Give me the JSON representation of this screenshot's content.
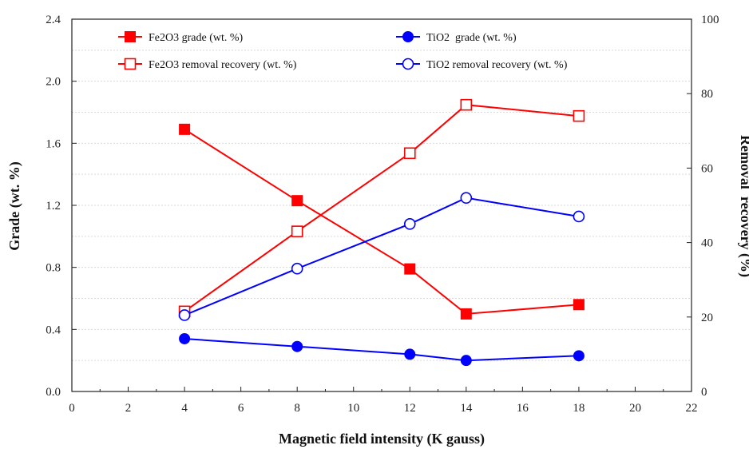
{
  "chart_data": {
    "type": "line",
    "title": "",
    "xlabel": "Magnetic field intensity (K gauss)",
    "ylabel_left": "Grade (wt. %)",
    "ylabel_right": "Removal  recovery (%)",
    "xlim": [
      0,
      22
    ],
    "xticks": [
      0,
      2,
      4,
      6,
      8,
      10,
      12,
      14,
      16,
      18,
      20,
      22
    ],
    "ylim_left": [
      0,
      2.4
    ],
    "yticks_left": [
      "0.0",
      "0.4",
      "0.8",
      "1.2",
      "1.6",
      "2.0",
      "2.4"
    ],
    "ylim_right": [
      0,
      100
    ],
    "yticks_right": [
      "0",
      "20",
      "40",
      "60",
      "80",
      "100"
    ],
    "grid": "horizontal minor gridlines",
    "legend_position": "top",
    "x": [
      4,
      8,
      12,
      14,
      18
    ],
    "series": [
      {
        "name": "Fe2O3 grade (wt. %)",
        "axis": "left",
        "color": "#ff0000",
        "marker": "filled-square",
        "values": [
          1.69,
          1.23,
          0.79,
          0.5,
          0.56
        ]
      },
      {
        "name": "TiO2  grade (wt. %)",
        "axis": "left",
        "color": "#0000ff",
        "marker": "filled-circle",
        "values": [
          0.34,
          0.29,
          0.24,
          0.2,
          0.23
        ]
      },
      {
        "name": "Fe2O3 removal recovery (wt. %)",
        "axis": "right",
        "color": "#ff0000",
        "marker": "open-square",
        "values": [
          21.5,
          43,
          64,
          77,
          74
        ]
      },
      {
        "name": "TiO2 removal recovery (wt. %)",
        "axis": "right",
        "color": "#0000ff",
        "marker": "open-circle",
        "values": [
          20.5,
          33,
          45,
          52,
          47
        ]
      }
    ]
  }
}
